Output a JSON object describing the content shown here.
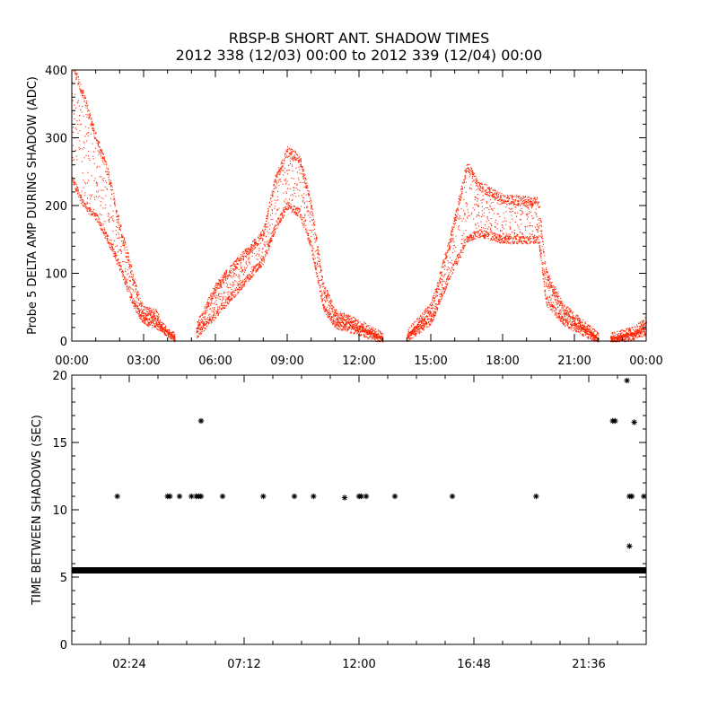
{
  "title": "RBSP-B SHORT ANT. SHADOW TIMES",
  "subtitle": "2012 338 (12/03) 00:00 to 2012 339 (12/04) 00:00",
  "chart_data": [
    {
      "type": "scatter",
      "name": "shadow-delta-amplitude",
      "ylabel": "Probe 5 DELTA AMP DURING SHADOW (ADC)",
      "xlabel": "",
      "xlim_hours": [
        0,
        24
      ],
      "ylim": [
        0,
        400
      ],
      "x_ticks": [
        "00:00",
        "03:00",
        "06:00",
        "09:00",
        "12:00",
        "15:00",
        "18:00",
        "21:00",
        "00:00"
      ],
      "y_ticks": [
        0,
        100,
        200,
        300,
        400
      ],
      "color": "#ff2200",
      "profile_upper": [
        [
          0.0,
          410
        ],
        [
          0.5,
          360
        ],
        [
          1.0,
          300
        ],
        [
          1.5,
          250
        ],
        [
          2.0,
          170
        ],
        [
          2.5,
          100
        ],
        [
          2.8,
          60
        ],
        [
          3.0,
          45
        ],
        [
          3.5,
          40
        ],
        [
          3.8,
          20
        ],
        [
          4.3,
          5
        ]
      ],
      "profile_lower": [
        [
          0.0,
          240
        ],
        [
          0.5,
          200
        ],
        [
          1.0,
          185
        ],
        [
          1.5,
          150
        ],
        [
          2.0,
          110
        ],
        [
          2.5,
          60
        ],
        [
          3.0,
          30
        ],
        [
          3.5,
          25
        ],
        [
          4.3,
          5
        ]
      ],
      "profile_upper_2": [
        [
          5.2,
          20
        ],
        [
          6.0,
          80
        ],
        [
          7.0,
          120
        ],
        [
          8.0,
          160
        ],
        [
          8.5,
          240
        ],
        [
          9.0,
          280
        ],
        [
          9.5,
          270
        ],
        [
          10.0,
          200
        ],
        [
          10.5,
          80
        ],
        [
          11.0,
          40
        ],
        [
          12.0,
          25
        ],
        [
          13.0,
          5
        ]
      ],
      "profile_lower_2": [
        [
          5.2,
          10
        ],
        [
          6.0,
          40
        ],
        [
          7.0,
          80
        ],
        [
          8.0,
          120
        ],
        [
          8.5,
          170
        ],
        [
          9.0,
          200
        ],
        [
          9.5,
          190
        ],
        [
          10.0,
          140
        ],
        [
          10.5,
          50
        ],
        [
          11.0,
          25
        ],
        [
          12.0,
          15
        ],
        [
          13.0,
          2
        ]
      ],
      "profile_upper_3": [
        [
          14.0,
          10
        ],
        [
          15.0,
          50
        ],
        [
          15.8,
          150
        ],
        [
          16.5,
          260
        ],
        [
          17.0,
          230
        ],
        [
          18.0,
          210
        ],
        [
          19.5,
          205
        ],
        [
          19.8,
          100
        ],
        [
          20.5,
          50
        ],
        [
          22.0,
          5
        ]
      ],
      "profile_lower_3": [
        [
          14.0,
          5
        ],
        [
          15.0,
          30
        ],
        [
          15.8,
          100
        ],
        [
          16.5,
          150
        ],
        [
          17.0,
          160
        ],
        [
          18.0,
          150
        ],
        [
          19.5,
          150
        ],
        [
          19.8,
          60
        ],
        [
          20.5,
          30
        ],
        [
          22.0,
          2
        ]
      ],
      "profile_upper_4": [
        [
          22.5,
          5
        ],
        [
          23.5,
          15
        ],
        [
          24.0,
          30
        ]
      ],
      "profile_lower_4": [
        [
          22.5,
          2
        ],
        [
          23.5,
          8
        ],
        [
          24.0,
          15
        ]
      ]
    },
    {
      "type": "scatter",
      "name": "time-between-shadows",
      "ylabel": "TIME BETWEEN SHADOWS (SEC)",
      "xlabel": "",
      "xlim_hours": [
        0,
        24
      ],
      "ylim": [
        0,
        20
      ],
      "x_ticks": [
        {
          "hour": 2.4,
          "label": "02:24"
        },
        {
          "hour": 7.2,
          "label": "07:12"
        },
        {
          "hour": 12.0,
          "label": "12:00"
        },
        {
          "hour": 16.8,
          "label": "16:48"
        },
        {
          "hour": 21.6,
          "label": "21:36"
        }
      ],
      "y_ticks": [
        0,
        5,
        10,
        15,
        20
      ],
      "color": "#000000",
      "baseline_value": 5.5,
      "baseline_ranges_hours": [
        [
          0.0,
          24.0
        ]
      ],
      "outliers": [
        [
          1.9,
          11
        ],
        [
          4.0,
          11
        ],
        [
          4.1,
          11
        ],
        [
          4.5,
          11
        ],
        [
          5.0,
          11
        ],
        [
          5.2,
          11
        ],
        [
          5.3,
          11
        ],
        [
          5.4,
          11
        ],
        [
          5.4,
          16.6
        ],
        [
          6.3,
          11
        ],
        [
          8.0,
          11
        ],
        [
          9.3,
          11
        ],
        [
          10.1,
          11
        ],
        [
          11.4,
          10.9
        ],
        [
          12.0,
          11
        ],
        [
          12.1,
          11
        ],
        [
          12.3,
          11
        ],
        [
          13.5,
          11
        ],
        [
          15.9,
          11
        ],
        [
          19.4,
          11
        ],
        [
          22.6,
          16.6
        ],
        [
          22.7,
          16.6
        ],
        [
          23.2,
          19.6
        ],
        [
          23.3,
          11
        ],
        [
          23.4,
          11
        ],
        [
          23.3,
          7.3
        ],
        [
          23.5,
          16.5
        ],
        [
          23.9,
          11
        ]
      ]
    }
  ]
}
